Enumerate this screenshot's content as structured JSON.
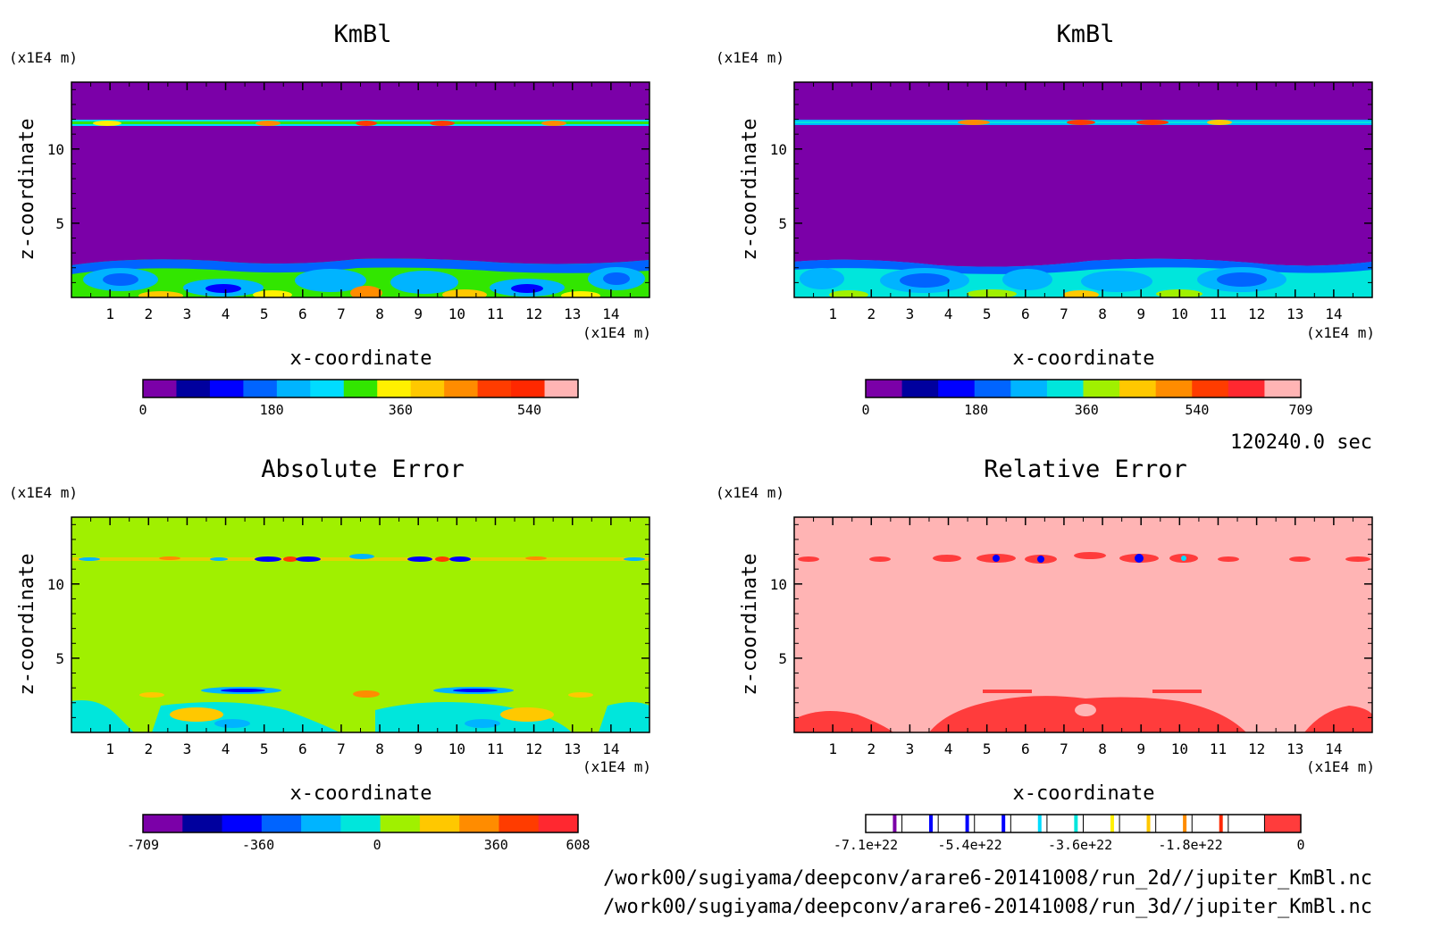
{
  "chart_data": [
    {
      "type": "heatmap",
      "title": "KmBl",
      "xlabel": "x-coordinate",
      "ylabel": "z-coordinate",
      "x_unit": "(x1E4 m)",
      "y_unit": "(x1E4 m)",
      "xlim": [
        0,
        15
      ],
      "ylim": [
        0,
        14.5
      ],
      "x_ticks": [
        1,
        2,
        3,
        4,
        5,
        6,
        7,
        8,
        9,
        10,
        11,
        12,
        13,
        14
      ],
      "y_ticks": [
        5,
        10
      ],
      "background_color": "#7b00a8",
      "colorbar": {
        "colors": [
          "#7b00a8",
          "#00009e",
          "#0000ff",
          "#0064ff",
          "#00b4ff",
          "#00dcff",
          "#32e600",
          "#fff000",
          "#ffc800",
          "#ff8c00",
          "#ff3c00",
          "#ff2800",
          "#ffb4b4"
        ],
        "tick_values": [
          0,
          180,
          360,
          540
        ],
        "tick_labels": [
          "0",
          "180",
          "360",
          "540"
        ],
        "range": [
          0,
          608
        ]
      }
    },
    {
      "type": "heatmap",
      "title": "KmBl",
      "xlabel": "x-coordinate",
      "ylabel": "z-coordinate",
      "x_unit": "(x1E4 m)",
      "y_unit": "(x1E4 m)",
      "xlim": [
        0,
        15
      ],
      "ylim": [
        0,
        14.5
      ],
      "x_ticks": [
        1,
        2,
        3,
        4,
        5,
        6,
        7,
        8,
        9,
        10,
        11,
        12,
        13,
        14
      ],
      "y_ticks": [
        5,
        10
      ],
      "background_color": "#7b00a8",
      "colorbar": {
        "colors": [
          "#7b00a8",
          "#00009e",
          "#0000ff",
          "#0064ff",
          "#00b4ff",
          "#00e6dc",
          "#a0f000",
          "#ffc800",
          "#ff8c00",
          "#ff3c00",
          "#ff2830",
          "#ffb4b4"
        ],
        "tick_values": [
          0,
          180,
          360,
          540,
          709
        ],
        "tick_labels": [
          "0",
          "180",
          "360",
          "540",
          "709"
        ],
        "range": [
          0,
          709
        ]
      }
    },
    {
      "type": "heatmap",
      "title": "Absolute Error",
      "xlabel": "x-coordinate",
      "ylabel": "z-coordinate",
      "x_unit": "(x1E4 m)",
      "y_unit": "(x1E4 m)",
      "xlim": [
        0,
        15
      ],
      "ylim": [
        0,
        14.5
      ],
      "x_ticks": [
        1,
        2,
        3,
        4,
        5,
        6,
        7,
        8,
        9,
        10,
        11,
        12,
        13,
        14
      ],
      "y_ticks": [
        5,
        10
      ],
      "background_color": "#a0f000",
      "colorbar": {
        "colors": [
          "#7b00a8",
          "#00009e",
          "#0000ff",
          "#0064ff",
          "#00b4ff",
          "#00e6dc",
          "#a0f000",
          "#ffc800",
          "#ff8c00",
          "#ff3c00",
          "#ff2830"
        ],
        "tick_values": [
          -709,
          -360,
          0,
          360,
          608
        ],
        "tick_labels": [
          "-709",
          "-360",
          "0",
          "360",
          "608"
        ],
        "range": [
          -709,
          608
        ]
      }
    },
    {
      "type": "heatmap",
      "title": "Relative Error",
      "xlabel": "x-coordinate",
      "ylabel": "z-coordinate",
      "x_unit": "(x1E4 m)",
      "y_unit": "(x1E4 m)",
      "xlim": [
        0,
        15
      ],
      "ylim": [
        0,
        14.5
      ],
      "x_ticks": [
        1,
        2,
        3,
        4,
        5,
        6,
        7,
        8,
        9,
        10,
        11,
        12,
        13,
        14
      ],
      "y_ticks": [
        5,
        10
      ],
      "background_color": "#ffb4b4",
      "colorbar": {
        "tick_values": [
          -7.1e+22,
          -5.4e+22,
          -3.6e+22,
          -1.8e+22,
          0
        ],
        "tick_labels": [
          "-7.1e+22",
          "-5.4e+22",
          "-3.6e+22",
          "-1.8e+22",
          "0"
        ],
        "range": [
          -7.1e+22,
          0
        ],
        "band_colors": [
          "#7b00a8",
          "#0000ff",
          "#0000ff",
          "#0000ff",
          "#00dcff",
          "#00e6dc",
          "#fff000",
          "#ffc800",
          "#ff8c00",
          "#ff2800",
          "#ff3c3c"
        ]
      }
    }
  ],
  "time_label": "120240.0 sec",
  "footer": {
    "line1": "/work00/sugiyama/deepconv/arare6-20141008/run_2d//jupiter_KmBl.nc",
    "line2": "/work00/sugiyama/deepconv/arare6-20141008/run_3d//jupiter_KmBl.nc"
  }
}
